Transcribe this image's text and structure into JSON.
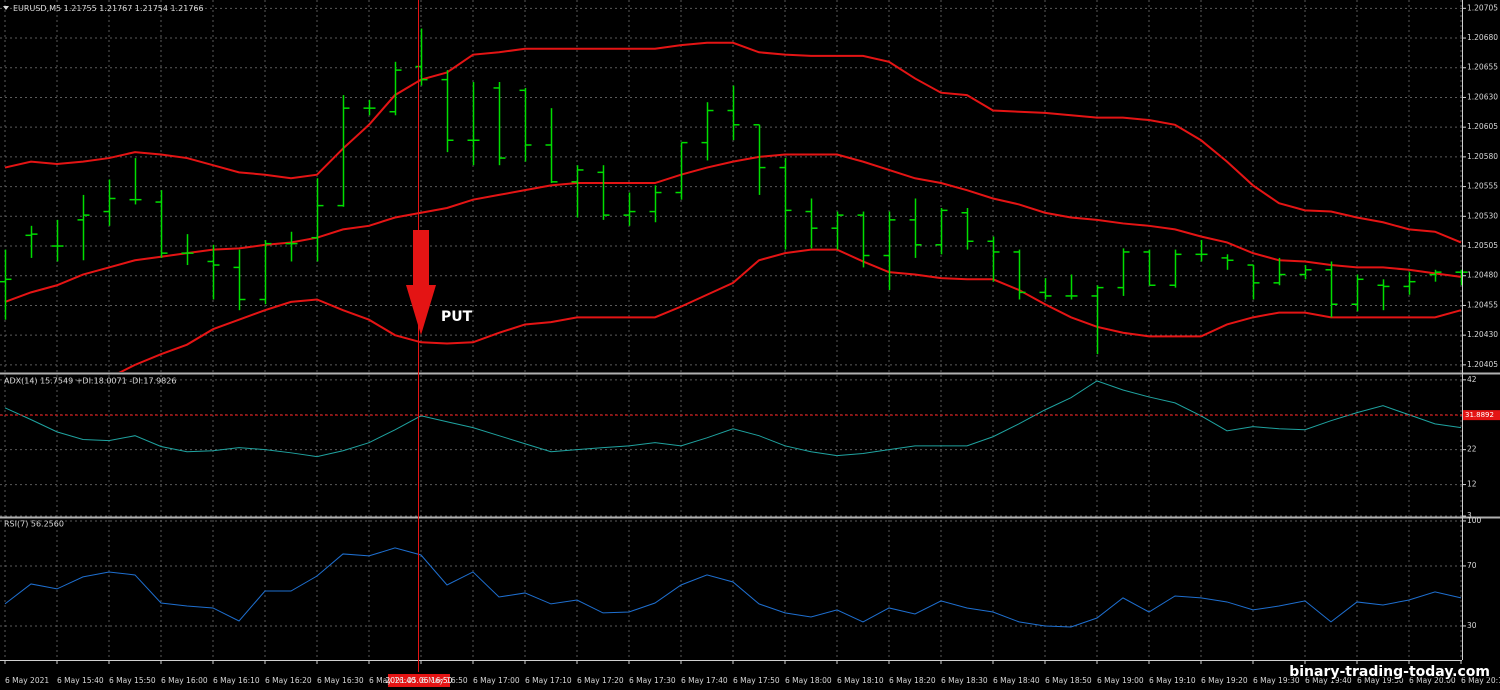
{
  "chart_data": [
    {
      "type": "ohlc",
      "title": "EURUSD,M5  1.21755 1.21767 1.21754 1.21766",
      "color": "#00dd00",
      "open": [
        1.20475,
        1.20514,
        1.20505,
        1.20527,
        1.20534,
        1.20544,
        1.20542,
        1.20499,
        1.20492,
        1.20487,
        1.2046,
        1.20507,
        1.20512,
        1.20539,
        1.20621,
        1.20618,
        1.20656,
        1.20645,
        1.20594,
        1.20638,
        1.20636,
        1.2059,
        1.20559,
        1.20567,
        1.20531,
        1.20534,
        1.2055,
        1.20592,
        1.20619,
        1.20607,
        1.20571,
        1.20534,
        1.2052,
        1.20531,
        1.20497,
        1.20527,
        1.20506,
        1.20533,
        1.20509,
        1.205,
        1.20466,
        1.20463,
        1.20463,
        1.2047,
        1.205,
        1.20472,
        1.20498,
        1.20495,
        1.20489,
        1.20474,
        1.20481,
        1.20485,
        1.20456,
        1.20472,
        1.20471,
        1.20481,
        1.20483
      ],
      "high": [
        1.20502,
        1.20522,
        1.20527,
        1.20548,
        1.20561,
        1.20579,
        1.20552,
        1.20515,
        1.20506,
        1.20502,
        1.2051,
        1.20517,
        1.20562,
        1.20632,
        1.20628,
        1.2066,
        1.20688,
        1.20653,
        1.20643,
        1.20643,
        1.20638,
        1.20621,
        1.20573,
        1.20573,
        1.2055,
        1.20556,
        1.20592,
        1.20626,
        1.2064,
        1.20607,
        1.20579,
        1.20545,
        1.20534,
        1.20534,
        1.20534,
        1.20545,
        1.20537,
        1.20537,
        1.20513,
        1.20502,
        1.20478,
        1.20481,
        1.20472,
        1.20503,
        1.20502,
        1.20502,
        1.2051,
        1.20498,
        1.20489,
        1.20495,
        1.20489,
        1.20492,
        1.20481,
        1.20477,
        1.20483,
        1.20485,
        1.20485
      ],
      "low": [
        1.20443,
        1.20495,
        1.20492,
        1.20493,
        1.20522,
        1.2054,
        1.20495,
        1.20489,
        1.2046,
        1.20451,
        1.20456,
        1.20492,
        1.20492,
        1.20538,
        1.20615,
        1.20615,
        1.2064,
        1.20584,
        1.20573,
        1.20573,
        1.20576,
        1.20558,
        1.20529,
        1.20527,
        1.20522,
        1.20525,
        1.20544,
        1.20577,
        1.20594,
        1.20548,
        1.20502,
        1.20503,
        1.20502,
        1.20487,
        1.20468,
        1.20495,
        1.20498,
        1.20502,
        1.20475,
        1.2046,
        1.2046,
        1.2046,
        1.20414,
        1.20463,
        1.20472,
        1.2047,
        1.20492,
        1.20485,
        1.2046,
        1.20472,
        1.20477,
        1.20445,
        1.2045,
        1.20451,
        1.20464,
        1.20475,
        1.20472
      ],
      "close": [
        1.20477,
        1.20515,
        1.20505,
        1.20531,
        1.20545,
        1.20544,
        1.20499,
        1.20499,
        1.20489,
        1.2046,
        1.20507,
        1.20507,
        1.20539,
        1.20621,
        1.20621,
        1.20653,
        1.20645,
        1.20594,
        1.20594,
        1.20579,
        1.2059,
        1.20559,
        1.20569,
        1.20531,
        1.20534,
        1.2055,
        1.20592,
        1.20619,
        1.20607,
        1.20571,
        1.20535,
        1.2052,
        1.20531,
        1.20497,
        1.20527,
        1.20506,
        1.20535,
        1.20509,
        1.205,
        1.20466,
        1.20463,
        1.20463,
        1.2047,
        1.205,
        1.20472,
        1.20498,
        1.20498,
        1.20493,
        1.20474,
        1.20481,
        1.20485,
        1.20456,
        1.20477,
        1.20471,
        1.20475,
        1.20483,
        1.20483
      ],
      "bands": {
        "color": "#e41414",
        "upper": [
          1.20571,
          1.20576,
          1.20574,
          1.20576,
          1.20579,
          1.20584,
          1.20582,
          1.20579,
          1.20573,
          1.20567,
          1.20565,
          1.20562,
          1.20565,
          1.20587,
          1.20607,
          1.20632,
          1.20645,
          1.20651,
          1.20666,
          1.20668,
          1.20671,
          1.20671,
          1.20671,
          1.20671,
          1.20671,
          1.20671,
          1.20674,
          1.20676,
          1.20676,
          1.20668,
          1.20666,
          1.20665,
          1.20665,
          1.20665,
          1.2066,
          1.20646,
          1.20634,
          1.20632,
          1.20619,
          1.20618,
          1.20617,
          1.20615,
          1.20613,
          1.20613,
          1.20611,
          1.20607,
          1.20594,
          1.20576,
          1.20556,
          1.20541,
          1.20535,
          1.20534,
          1.20529,
          1.20525,
          1.20519,
          1.20517,
          1.20508
        ],
        "middle": [
          1.20458,
          1.20466,
          1.20472,
          1.20481,
          1.20487,
          1.20493,
          1.20496,
          1.20499,
          1.20502,
          1.20503,
          1.20506,
          1.20508,
          1.20512,
          1.20519,
          1.20522,
          1.20529,
          1.20533,
          1.20537,
          1.20544,
          1.20548,
          1.20552,
          1.20556,
          1.20558,
          1.20558,
          1.20558,
          1.20558,
          1.20565,
          1.20571,
          1.20576,
          1.2058,
          1.20582,
          1.20582,
          1.20582,
          1.20576,
          1.20569,
          1.20562,
          1.20558,
          1.20552,
          1.20545,
          1.2054,
          1.20533,
          1.20529,
          1.20527,
          1.20524,
          1.20522,
          1.20519,
          1.20513,
          1.20508,
          1.20499,
          1.20493,
          1.20492,
          1.20489,
          1.20487,
          1.20487,
          1.20485,
          1.20482,
          1.20479
        ],
        "lower": [
          1.20367,
          1.20374,
          1.2038,
          1.20387,
          1.20394,
          1.20405,
          1.20414,
          1.20422,
          1.20435,
          1.20443,
          1.20451,
          1.20458,
          1.2046,
          1.20451,
          1.20443,
          1.2043,
          1.20424,
          1.20423,
          1.20424,
          1.20432,
          1.20439,
          1.20441,
          1.20445,
          1.20445,
          1.20445,
          1.20445,
          1.20454,
          1.20464,
          1.20474,
          1.20493,
          1.20499,
          1.20502,
          1.20502,
          1.20492,
          1.20483,
          1.20481,
          1.20478,
          1.20477,
          1.20477,
          1.20468,
          1.20456,
          1.20445,
          1.20437,
          1.20432,
          1.20429,
          1.20429,
          1.20429,
          1.20439,
          1.20445,
          1.20449,
          1.20449,
          1.20445,
          1.20445,
          1.20445,
          1.20445,
          1.20445,
          1.20451
        ]
      },
      "ylim": [
        1.20399,
        1.20712
      ],
      "yticks": [
        1.20705,
        {
          "value": 1.2068,
          "label": "1.20680"
        },
        1.20655,
        {
          "value": 1.2063,
          "label": "1.20630"
        },
        1.20605,
        {
          "value": 1.2058,
          "label": "1.20580"
        },
        1.20555,
        {
          "value": 1.2053,
          "label": "1.20530"
        },
        1.20505,
        {
          "value": 1.2048,
          "label": "1.20480"
        },
        1.20455,
        {
          "value": 1.2043,
          "label": "1.20430"
        },
        1.20405
      ],
      "grid": true,
      "annotation": "PUT"
    },
    {
      "type": "line",
      "title": "ADX(14) 15.7549 +DI:18.0071 -DI:17.9826",
      "color": "#1fa3a0",
      "values": [
        34.0,
        30.6,
        27.1,
        24.9,
        24.6,
        26.0,
        22.9,
        21.4,
        21.7,
        22.6,
        22.0,
        21.1,
        20.0,
        21.7,
        24.0,
        27.7,
        31.7,
        30.0,
        28.3,
        26.0,
        23.7,
        21.4,
        22.0,
        22.6,
        23.1,
        24.0,
        23.1,
        25.4,
        28.0,
        26.0,
        23.1,
        21.4,
        20.3,
        20.9,
        22.0,
        23.1,
        23.1,
        23.1,
        25.7,
        29.4,
        33.4,
        36.9,
        41.7,
        39.1,
        37.1,
        35.4,
        31.7,
        27.4,
        28.6,
        28.0,
        27.7,
        30.3,
        32.6,
        34.6,
        32.0,
        29.4,
        28.3
      ],
      "ylim": [
        3,
        43.1
      ],
      "yticks": [
        3,
        12,
        22,
        32,
        42
      ],
      "grid": true,
      "level": 31.8892,
      "level_color": "#e41414"
    },
    {
      "type": "line",
      "title": "RSI(7) 56.2560",
      "color": "#1e6fd0",
      "values": [
        44.7,
        58.0,
        54.7,
        62.7,
        66.0,
        64.0,
        45.3,
        43.3,
        42.0,
        33.3,
        53.3,
        53.3,
        63.3,
        78.0,
        76.7,
        82.0,
        77.3,
        57.3,
        66.0,
        49.3,
        52.0,
        44.7,
        47.3,
        38.7,
        39.3,
        45.3,
        57.3,
        64.0,
        59.3,
        44.7,
        38.7,
        36.0,
        40.7,
        32.7,
        42.0,
        38.0,
        46.7,
        42.0,
        39.3,
        32.7,
        30.0,
        29.3,
        35.3,
        48.7,
        39.3,
        50.0,
        48.7,
        46.0,
        40.7,
        43.3,
        46.7,
        32.7,
        46.0,
        44.0,
        47.3,
        52.7,
        48.7
      ],
      "ylim": [
        7.3,
        101.3
      ],
      "yticks": [
        30,
        70,
        100
      ],
      "grid": true
    }
  ],
  "time_axis": {
    "labels": [
      "6 May 2021",
      "6 May 15:40",
      "6 May 15:50",
      "6 May 16:00",
      "6 May 16:10",
      "6 May 16:20",
      "6 May 16:30",
      "6 May 16:40",
      "6 May 16:50",
      "6 May 17:00",
      "6 May 17:10",
      "6 May 17:20",
      "6 May 17:30",
      "6 May 17:40",
      "6 May 17:50",
      "6 May 18:00",
      "6 May 18:10",
      "6 May 18:20",
      "6 May 18:30",
      "6 May 18:40",
      "6 May 18:50",
      "6 May 19:00",
      "6 May 19:10",
      "6 May 19:20",
      "6 May 19:30",
      "6 May 19:40",
      "6 May 19:50",
      "6 May 20:00",
      "6 May 20:10"
    ],
    "cursor": "2021.05.06 16:50"
  },
  "watermark": "binary-trading-today.com"
}
